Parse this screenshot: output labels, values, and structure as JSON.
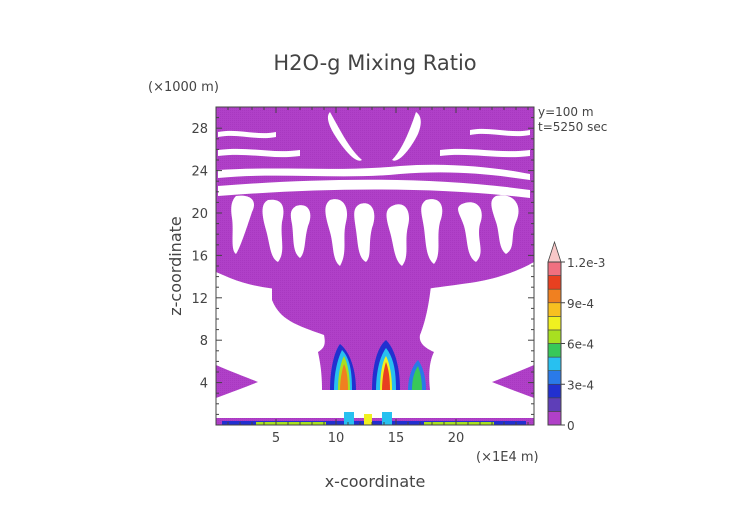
{
  "chart_data": {
    "type": "heatmap",
    "title": "H2O-g Mixing Ratio",
    "xlabel": "x-coordinate",
    "ylabel": "z-coordinate",
    "x_unit": "(×1E4 m)",
    "y_unit": "(×1000 m)",
    "info": [
      "y=100 m",
      "t=5250 sec"
    ],
    "xlim": [
      0,
      26.5
    ],
    "ylim": [
      0,
      30
    ],
    "x_ticks": [
      5,
      10,
      15,
      20
    ],
    "y_ticks": [
      4,
      8,
      12,
      16,
      20,
      24,
      28
    ],
    "colorbar": {
      "labels": [
        "1.2e-3",
        "9e-4",
        "6e-4",
        "3e-4",
        "0"
      ],
      "label_values": [
        0.0012,
        0.0009,
        0.0006,
        0.0003,
        0
      ],
      "levels": [
        0,
        0.0001,
        0.0002,
        0.0003,
        0.0004,
        0.0005,
        0.0006,
        0.0007,
        0.0008,
        0.0009,
        0.001,
        0.0011,
        0.0012
      ],
      "colors": [
        "#b040c8",
        "#5e3eb8",
        "#2230d0",
        "#2a7ae8",
        "#28c0f0",
        "#38c858",
        "#a8e020",
        "#f0f020",
        "#f8c020",
        "#f08020",
        "#e84020",
        "#f07080",
        "#f8c8c8"
      ],
      "extend_max": true
    },
    "regions": [
      {
        "name": "upper moist layer",
        "x": [
          0,
          26.5
        ],
        "z": [
          13.5,
          30
        ],
        "value": 5e-05
      },
      {
        "name": "central moist column",
        "x": [
          8.5,
          17
        ],
        "z": [
          2.5,
          13.5
        ],
        "value": 5e-05
      },
      {
        "name": "updraft core left",
        "x": [
          10,
          11.5
        ],
        "z": [
          2.5,
          7.5
        ],
        "value": 0.0008
      },
      {
        "name": "updraft core right",
        "x": [
          12.5,
          14
        ],
        "z": [
          2.5,
          7.5
        ],
        "value": 0.0008
      },
      {
        "name": "boundary layer",
        "x": [
          0,
          26.5
        ],
        "z": [
          0,
          0.8
        ],
        "value": 0.0003
      },
      {
        "name": "left edge wave",
        "x": [
          0,
          3
        ],
        "z": [
          2.5,
          5
        ],
        "value": 5e-05
      },
      {
        "name": "right edge wave",
        "x": [
          23.5,
          26.5
        ],
        "z": [
          2.5,
          5
        ],
        "value": 5e-05
      }
    ]
  }
}
